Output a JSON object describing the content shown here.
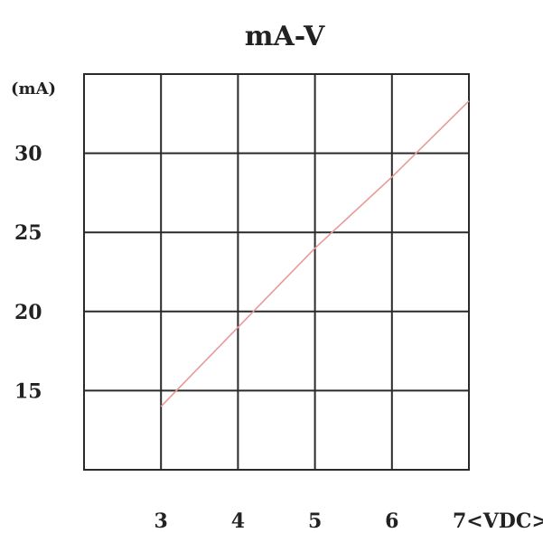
{
  "chart_data": {
    "type": "line",
    "title": "mA-V",
    "ylabel": "(mA)",
    "xlabel": "",
    "x_tick_labels": [
      "3",
      "4",
      "5",
      "6",
      "7<VDC>"
    ],
    "y_tick_labels": [
      "15",
      "20",
      "25",
      "30"
    ],
    "x_ticks": [
      3,
      4,
      5,
      6,
      7
    ],
    "y_ticks": [
      15,
      20,
      25,
      30
    ],
    "xlim": [
      2,
      7
    ],
    "ylim": [
      10,
      35
    ],
    "grid": true,
    "legend": "none",
    "colors": {
      "line": "#e89a9a",
      "grid": "#2a2a2a",
      "text": "#222222"
    },
    "series": [
      {
        "x": [
          3,
          4,
          5,
          6,
          7
        ],
        "values": [
          14,
          19,
          24,
          28.5,
          33.3
        ]
      }
    ]
  }
}
